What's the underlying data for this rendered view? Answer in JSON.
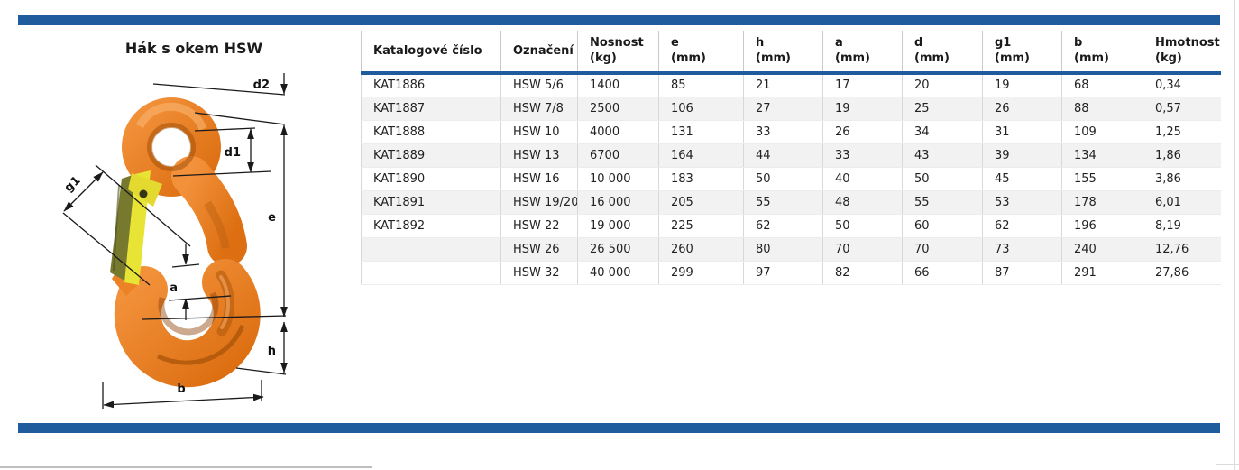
{
  "page": {
    "title": "Hák s okem HSW"
  },
  "accent_color": "#1f5c9e",
  "figure": {
    "name": "hook-with-eye-illustration",
    "colors": {
      "hook_orange": "#e87e22",
      "hook_shadow": "#a85408",
      "hook_highlight": "#f7a860",
      "latch_yellow": "#e8e435",
      "latch_olive": "#77792e"
    },
    "labels": {
      "d2": "d2",
      "d1": "d1",
      "e": "e",
      "g1": "g1",
      "a": "a",
      "h": "h",
      "b": "b"
    }
  },
  "table": {
    "columns": [
      {
        "label": "Katalogové číslo",
        "sub": ""
      },
      {
        "label": "Označení",
        "sub": ""
      },
      {
        "label": "Nosnost",
        "sub": "(kg)"
      },
      {
        "label": "e",
        "sub": "(mm)"
      },
      {
        "label": "h",
        "sub": "(mm)"
      },
      {
        "label": "a",
        "sub": "(mm)"
      },
      {
        "label": "d",
        "sub": "(mm)"
      },
      {
        "label": "g1",
        "sub": "(mm)"
      },
      {
        "label": "b",
        "sub": "(mm)"
      },
      {
        "label": "Hmotnost",
        "sub": "(kg)"
      }
    ],
    "rows": [
      [
        "KAT1886",
        "HSW 5/6",
        "1400",
        "85",
        "21",
        "17",
        "20",
        "19",
        "68",
        "0,34"
      ],
      [
        "KAT1887",
        "HSW 7/8",
        "2500",
        "106",
        "27",
        "19",
        "25",
        "26",
        "88",
        "0,57"
      ],
      [
        "KAT1888",
        "HSW 10",
        "4000",
        "131",
        "33",
        "26",
        "34",
        "31",
        "109",
        "1,25"
      ],
      [
        "KAT1889",
        "HSW 13",
        "6700",
        "164",
        "44",
        "33",
        "43",
        "39",
        "134",
        "1,86"
      ],
      [
        "KAT1890",
        "HSW 16",
        "10 000",
        "183",
        "50",
        "40",
        "50",
        "45",
        "155",
        "3,86"
      ],
      [
        "KAT1891",
        "HSW 19/20",
        "16 000",
        "205",
        "55",
        "48",
        "55",
        "53",
        "178",
        "6,01"
      ],
      [
        "KAT1892",
        "HSW 22",
        "19 000",
        "225",
        "62",
        "50",
        "60",
        "62",
        "196",
        "8,19"
      ],
      [
        "",
        "HSW 26",
        "26 500",
        "260",
        "80",
        "70",
        "70",
        "73",
        "240",
        "12,76"
      ],
      [
        "",
        "HSW 32",
        "40 000",
        "299",
        "97",
        "82",
        "66",
        "87",
        "291",
        "27,86"
      ]
    ]
  }
}
